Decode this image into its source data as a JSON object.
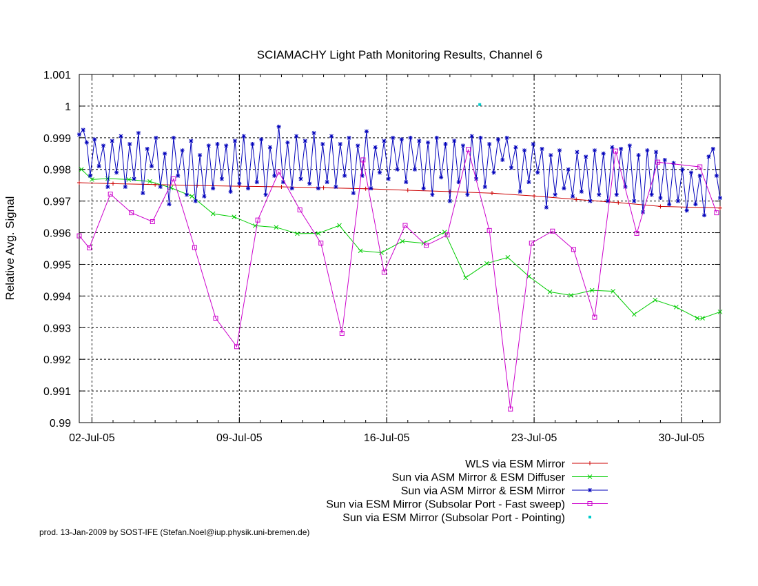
{
  "chart_data": {
    "type": "line",
    "title": "SCIAMACHY Light Path Monitoring Results, Channel 6",
    "xlabel": "",
    "ylabel": "Relative Avg. Signal",
    "xlim": [
      "2005-07-01 09:30",
      "2005-07-31 20:00"
    ],
    "ylim": [
      0.99,
      1.001
    ],
    "x_ticks": [
      {
        "date": "2005-07-02",
        "label": "02-Jul-05"
      },
      {
        "date": "2005-07-09",
        "label": "09-Jul-05"
      },
      {
        "date": "2005-07-16",
        "label": "16-Jul-05"
      },
      {
        "date": "2005-07-23",
        "label": "23-Jul-05"
      },
      {
        "date": "2005-07-30",
        "label": "30-Jul-05"
      }
    ],
    "y_ticks": [
      {
        "value": 0.99,
        "label": "0.99"
      },
      {
        "value": 0.991,
        "label": "0.991"
      },
      {
        "value": 0.992,
        "label": "0.992"
      },
      {
        "value": 0.993,
        "label": "0.993"
      },
      {
        "value": 0.994,
        "label": "0.994"
      },
      {
        "value": 0.995,
        "label": "0.995"
      },
      {
        "value": 0.996,
        "label": "0.996"
      },
      {
        "value": 0.997,
        "label": "0.997"
      },
      {
        "value": 0.998,
        "label": "0.998"
      },
      {
        "value": 0.999,
        "label": "0.999"
      },
      {
        "value": 1.0,
        "label": "1"
      },
      {
        "value": 1.001,
        "label": "1.001"
      }
    ],
    "grid": true,
    "legend_position": "bottom-right",
    "series": [
      {
        "name": "WLS via ESM Mirror",
        "color": "#cc0000",
        "marker": "plus",
        "points": [
          [
            "2005-07-01 09:30",
            0.99758
          ],
          [
            "2005-07-03 00:00",
            0.99755
          ],
          [
            "2005-07-05 00:00",
            0.99752
          ],
          [
            "2005-07-07 00:00",
            0.99749
          ],
          [
            "2005-07-09 00:00",
            0.99747
          ],
          [
            "2005-07-11 00:00",
            0.99745
          ],
          [
            "2005-07-13 00:00",
            0.99742
          ],
          [
            "2005-07-15 00:00",
            0.99739
          ],
          [
            "2005-07-17 00:00",
            0.99734
          ],
          [
            "2005-07-19 00:00",
            0.9973
          ],
          [
            "2005-07-21 00:00",
            0.99725
          ],
          [
            "2005-07-23 00:00",
            0.99716
          ],
          [
            "2005-07-25 00:00",
            0.99705
          ],
          [
            "2005-07-27 00:00",
            0.99695
          ],
          [
            "2005-07-29 00:00",
            0.99683
          ],
          [
            "2005-07-31 20:00",
            0.99678
          ]
        ]
      },
      {
        "name": "Sun via ASM Mirror & ESM Diffuser",
        "color": "#00cc00",
        "marker": "x",
        "points": [
          [
            "2005-07-01 12:00",
            0.998
          ],
          [
            "2005-07-02 00:00",
            0.99768
          ],
          [
            "2005-07-02 18:00",
            0.99771
          ],
          [
            "2005-07-03 18:00",
            0.99768
          ],
          [
            "2005-07-04 18:00",
            0.99762
          ],
          [
            "2005-07-05 18:00",
            0.99742
          ],
          [
            "2005-07-06 18:00",
            0.99715
          ],
          [
            "2005-07-07 18:00",
            0.9966
          ],
          [
            "2005-07-08 18:00",
            0.9965
          ],
          [
            "2005-07-09 18:00",
            0.99622
          ],
          [
            "2005-07-10 18:00",
            0.99617
          ],
          [
            "2005-07-11 18:00",
            0.99597
          ],
          [
            "2005-07-12 18:00",
            0.99598
          ],
          [
            "2005-07-13 18:00",
            0.99623
          ],
          [
            "2005-07-14 18:00",
            0.99543
          ],
          [
            "2005-07-15 18:00",
            0.99537
          ],
          [
            "2005-07-16 18:00",
            0.99573
          ],
          [
            "2005-07-17 18:00",
            0.99567
          ],
          [
            "2005-07-18 18:00",
            0.99602
          ],
          [
            "2005-07-19 18:00",
            0.99458
          ],
          [
            "2005-07-20 18:00",
            0.99503
          ],
          [
            "2005-07-21 18:00",
            0.99522
          ],
          [
            "2005-07-22 18:00",
            0.99462
          ],
          [
            "2005-07-23 18:00",
            0.99413
          ],
          [
            "2005-07-24 18:00",
            0.99402
          ],
          [
            "2005-07-25 18:00",
            0.99418
          ],
          [
            "2005-07-26 18:00",
            0.99415
          ],
          [
            "2005-07-27 18:00",
            0.99342
          ],
          [
            "2005-07-28 18:00",
            0.99387
          ],
          [
            "2005-07-29 18:00",
            0.99365
          ],
          [
            "2005-07-30 18:00",
            0.9933
          ],
          [
            "2005-07-31 00:00",
            0.9933
          ],
          [
            "2005-07-31 20:00",
            0.9935
          ]
        ]
      },
      {
        "name": "Sun via ASM Mirror & ESM Mirror",
        "color": "#0000bb",
        "marker": "star",
        "points": [
          [
            "2005-07-01 09:30",
            0.9991
          ],
          [
            "2005-07-01 14:00",
            0.99925
          ],
          [
            "2005-07-01 18:00",
            0.99885
          ],
          [
            "2005-07-01 22:00",
            0.9978
          ],
          [
            "2005-07-02 03:00",
            0.99895
          ],
          [
            "2005-07-02 08:00",
            0.9981
          ],
          [
            "2005-07-02 13:00",
            0.99875
          ],
          [
            "2005-07-02 18:00",
            0.99745
          ],
          [
            "2005-07-02 23:00",
            0.9989
          ],
          [
            "2005-07-03 04:00",
            0.9979
          ],
          [
            "2005-07-03 09:00",
            0.99905
          ],
          [
            "2005-07-03 14:00",
            0.99745
          ],
          [
            "2005-07-03 19:00",
            0.9988
          ],
          [
            "2005-07-04 00:00",
            0.9977
          ],
          [
            "2005-07-04 05:00",
            0.99915
          ],
          [
            "2005-07-04 10:00",
            0.99725
          ],
          [
            "2005-07-04 15:00",
            0.99865
          ],
          [
            "2005-07-04 20:00",
            0.9981
          ],
          [
            "2005-07-05 01:00",
            0.999
          ],
          [
            "2005-07-05 06:00",
            0.99745
          ],
          [
            "2005-07-05 11:00",
            0.9985
          ],
          [
            "2005-07-05 16:00",
            0.9969
          ],
          [
            "2005-07-05 21:00",
            0.999
          ],
          [
            "2005-07-06 02:00",
            0.9978
          ],
          [
            "2005-07-06 07:00",
            0.9986
          ],
          [
            "2005-07-06 12:00",
            0.9972
          ],
          [
            "2005-07-06 17:00",
            0.9989
          ],
          [
            "2005-07-06 22:00",
            0.997
          ],
          [
            "2005-07-07 03:00",
            0.99845
          ],
          [
            "2005-07-07 08:00",
            0.99715
          ],
          [
            "2005-07-07 13:00",
            0.99875
          ],
          [
            "2005-07-07 18:00",
            0.9974
          ],
          [
            "2005-07-07 23:00",
            0.9988
          ],
          [
            "2005-07-08 04:00",
            0.9977
          ],
          [
            "2005-07-08 09:00",
            0.99875
          ],
          [
            "2005-07-08 14:00",
            0.9973
          ],
          [
            "2005-07-08 19:00",
            0.9989
          ],
          [
            "2005-07-09 00:00",
            0.99755
          ],
          [
            "2005-07-09 05:00",
            0.99905
          ],
          [
            "2005-07-09 10:00",
            0.9974
          ],
          [
            "2005-07-09 15:00",
            0.9988
          ],
          [
            "2005-07-09 20:00",
            0.9976
          ],
          [
            "2005-07-10 01:00",
            0.99895
          ],
          [
            "2005-07-10 06:00",
            0.9972
          ],
          [
            "2005-07-10 11:00",
            0.9987
          ],
          [
            "2005-07-10 16:00",
            0.9978
          ],
          [
            "2005-07-10 21:00",
            0.99935
          ],
          [
            "2005-07-11 02:00",
            0.9976
          ],
          [
            "2005-07-11 07:00",
            0.99885
          ],
          [
            "2005-07-11 12:00",
            0.9974
          ],
          [
            "2005-07-11 17:00",
            0.99905
          ],
          [
            "2005-07-11 22:00",
            0.9977
          ],
          [
            "2005-07-12 03:00",
            0.9989
          ],
          [
            "2005-07-12 08:00",
            0.99755
          ],
          [
            "2005-07-12 13:00",
            0.99915
          ],
          [
            "2005-07-12 18:00",
            0.9974
          ],
          [
            "2005-07-12 23:00",
            0.9988
          ],
          [
            "2005-07-13 04:00",
            0.9976
          ],
          [
            "2005-07-13 09:00",
            0.99905
          ],
          [
            "2005-07-13 14:00",
            0.99745
          ],
          [
            "2005-07-13 19:00",
            0.9988
          ],
          [
            "2005-07-14 00:00",
            0.9978
          ],
          [
            "2005-07-14 05:00",
            0.999
          ],
          [
            "2005-07-14 10:00",
            0.99725
          ],
          [
            "2005-07-14 15:00",
            0.99875
          ],
          [
            "2005-07-14 20:00",
            0.9978
          ],
          [
            "2005-07-15 01:00",
            0.9992
          ],
          [
            "2005-07-15 06:00",
            0.9974
          ],
          [
            "2005-07-15 11:00",
            0.9987
          ],
          [
            "2005-07-15 16:00",
            0.9979
          ],
          [
            "2005-07-15 21:00",
            0.9989
          ],
          [
            "2005-07-16 02:00",
            0.9977
          ],
          [
            "2005-07-16 07:00",
            0.999
          ],
          [
            "2005-07-16 12:00",
            0.998
          ],
          [
            "2005-07-16 17:00",
            0.99895
          ],
          [
            "2005-07-16 22:00",
            0.9976
          ],
          [
            "2005-07-17 03:00",
            0.999
          ],
          [
            "2005-07-17 08:00",
            0.998
          ],
          [
            "2005-07-17 13:00",
            0.9989
          ],
          [
            "2005-07-17 18:00",
            0.9974
          ],
          [
            "2005-07-17 23:00",
            0.99885
          ],
          [
            "2005-07-18 04:00",
            0.9972
          ],
          [
            "2005-07-18 09:00",
            0.999
          ],
          [
            "2005-07-18 14:00",
            0.99775
          ],
          [
            "2005-07-18 19:00",
            0.9988
          ],
          [
            "2005-07-19 00:00",
            0.997
          ],
          [
            "2005-07-19 05:00",
            0.9989
          ],
          [
            "2005-07-19 10:00",
            0.9976
          ],
          [
            "2005-07-19 15:00",
            0.99875
          ],
          [
            "2005-07-19 20:00",
            0.9972
          ],
          [
            "2005-07-20 01:00",
            0.99905
          ],
          [
            "2005-07-20 06:00",
            0.9977
          ],
          [
            "2005-07-20 11:00",
            0.999
          ],
          [
            "2005-07-20 16:00",
            0.99745
          ],
          [
            "2005-07-20 21:00",
            0.9988
          ],
          [
            "2005-07-21 02:00",
            0.9979
          ],
          [
            "2005-07-21 07:00",
            0.99895
          ],
          [
            "2005-07-21 12:00",
            0.9983
          ],
          [
            "2005-07-21 17:00",
            0.999
          ],
          [
            "2005-07-21 22:00",
            0.99805
          ],
          [
            "2005-07-22 03:00",
            0.9987
          ],
          [
            "2005-07-22 08:00",
            0.9973
          ],
          [
            "2005-07-22 13:00",
            0.9986
          ],
          [
            "2005-07-22 18:00",
            0.9976
          ],
          [
            "2005-07-22 23:00",
            0.9988
          ],
          [
            "2005-07-23 04:00",
            0.9979
          ],
          [
            "2005-07-23 09:00",
            0.99865
          ],
          [
            "2005-07-23 14:00",
            0.9968
          ],
          [
            "2005-07-23 19:00",
            0.99845
          ],
          [
            "2005-07-24 00:00",
            0.9972
          ],
          [
            "2005-07-24 05:00",
            0.9986
          ],
          [
            "2005-07-24 10:00",
            0.9974
          ],
          [
            "2005-07-24 15:00",
            0.998
          ],
          [
            "2005-07-24 20:00",
            0.99715
          ],
          [
            "2005-07-25 01:00",
            0.99855
          ],
          [
            "2005-07-25 06:00",
            0.9973
          ],
          [
            "2005-07-25 11:00",
            0.9984
          ],
          [
            "2005-07-25 16:00",
            0.997
          ],
          [
            "2005-07-25 21:00",
            0.9986
          ],
          [
            "2005-07-26 02:00",
            0.9972
          ],
          [
            "2005-07-26 07:00",
            0.9985
          ],
          [
            "2005-07-26 12:00",
            0.997
          ],
          [
            "2005-07-26 17:00",
            0.9987
          ],
          [
            "2005-07-26 22:00",
            0.9972
          ],
          [
            "2005-07-27 03:00",
            0.99865
          ],
          [
            "2005-07-27 08:00",
            0.99745
          ],
          [
            "2005-07-27 13:00",
            0.99875
          ],
          [
            "2005-07-27 18:00",
            0.997
          ],
          [
            "2005-07-27 23:00",
            0.99845
          ],
          [
            "2005-07-28 04:00",
            0.99665
          ],
          [
            "2005-07-28 09:00",
            0.9986
          ],
          [
            "2005-07-28 14:00",
            0.9972
          ],
          [
            "2005-07-28 19:00",
            0.99855
          ],
          [
            "2005-07-29 00:00",
            0.9971
          ],
          [
            "2005-07-29 05:00",
            0.9983
          ],
          [
            "2005-07-29 10:00",
            0.9969
          ],
          [
            "2005-07-29 15:00",
            0.9982
          ],
          [
            "2005-07-29 20:00",
            0.997
          ],
          [
            "2005-07-30 01:00",
            0.998
          ],
          [
            "2005-07-30 06:00",
            0.9967
          ],
          [
            "2005-07-30 11:00",
            0.9979
          ],
          [
            "2005-07-30 16:00",
            0.9969
          ],
          [
            "2005-07-30 21:00",
            0.9978
          ],
          [
            "2005-07-31 02:00",
            0.99655
          ],
          [
            "2005-07-31 07:00",
            0.9984
          ],
          [
            "2005-07-31 12:00",
            0.99865
          ],
          [
            "2005-07-31 16:00",
            0.9978
          ],
          [
            "2005-07-31 20:00",
            0.9971
          ]
        ]
      },
      {
        "name": "Sun via ESM Mirror (Subsolar Port - Fast sweep)",
        "color": "#cc00cc",
        "marker": "square",
        "points": [
          [
            "2005-07-01 09:30",
            0.9959
          ],
          [
            "2005-07-01 21:00",
            0.99552
          ],
          [
            "2005-07-02 21:00",
            0.99722
          ],
          [
            "2005-07-03 21:00",
            0.99663
          ],
          [
            "2005-07-04 21:00",
            0.99635
          ],
          [
            "2005-07-05 21:00",
            0.9977
          ],
          [
            "2005-07-06 21:00",
            0.99553
          ],
          [
            "2005-07-07 21:00",
            0.9933
          ],
          [
            "2005-07-08 21:00",
            0.9924
          ],
          [
            "2005-07-09 21:00",
            0.9964
          ],
          [
            "2005-07-10 21:00",
            0.99792
          ],
          [
            "2005-07-11 21:00",
            0.99672
          ],
          [
            "2005-07-12 21:00",
            0.99567
          ],
          [
            "2005-07-13 21:00",
            0.99282
          ],
          [
            "2005-07-14 21:00",
            0.9983
          ],
          [
            "2005-07-15 21:00",
            0.99475
          ],
          [
            "2005-07-16 21:00",
            0.99623
          ],
          [
            "2005-07-17 21:00",
            0.9956
          ],
          [
            "2005-07-18 21:00",
            0.99593
          ],
          [
            "2005-07-19 21:00",
            0.99863
          ],
          [
            "2005-07-20 21:00",
            0.99607
          ],
          [
            "2005-07-21 21:00",
            0.99043
          ],
          [
            "2005-07-22 21:00",
            0.99567
          ],
          [
            "2005-07-23 21:00",
            0.99605
          ],
          [
            "2005-07-24 21:00",
            0.99547
          ],
          [
            "2005-07-25 21:00",
            0.99333
          ],
          [
            "2005-07-26 21:00",
            0.99858
          ],
          [
            "2005-07-27 21:00",
            0.99598
          ],
          [
            "2005-07-28 21:00",
            0.99823
          ],
          [
            "2005-07-30 21:00",
            0.99808
          ],
          [
            "2005-07-31 16:00",
            0.99663
          ]
        ]
      },
      {
        "name": "Sun via ESM Mirror (Subsolar Port - Pointing)",
        "color": "#00cccc",
        "marker": "dot",
        "line": false,
        "points": [
          [
            "2005-07-20 10:00",
            1.00005
          ]
        ]
      }
    ]
  },
  "footer": "prod. 13-Jan-2009 by SOST-IFE (Stefan.Noel@iup.physik.uni-bremen.de)"
}
